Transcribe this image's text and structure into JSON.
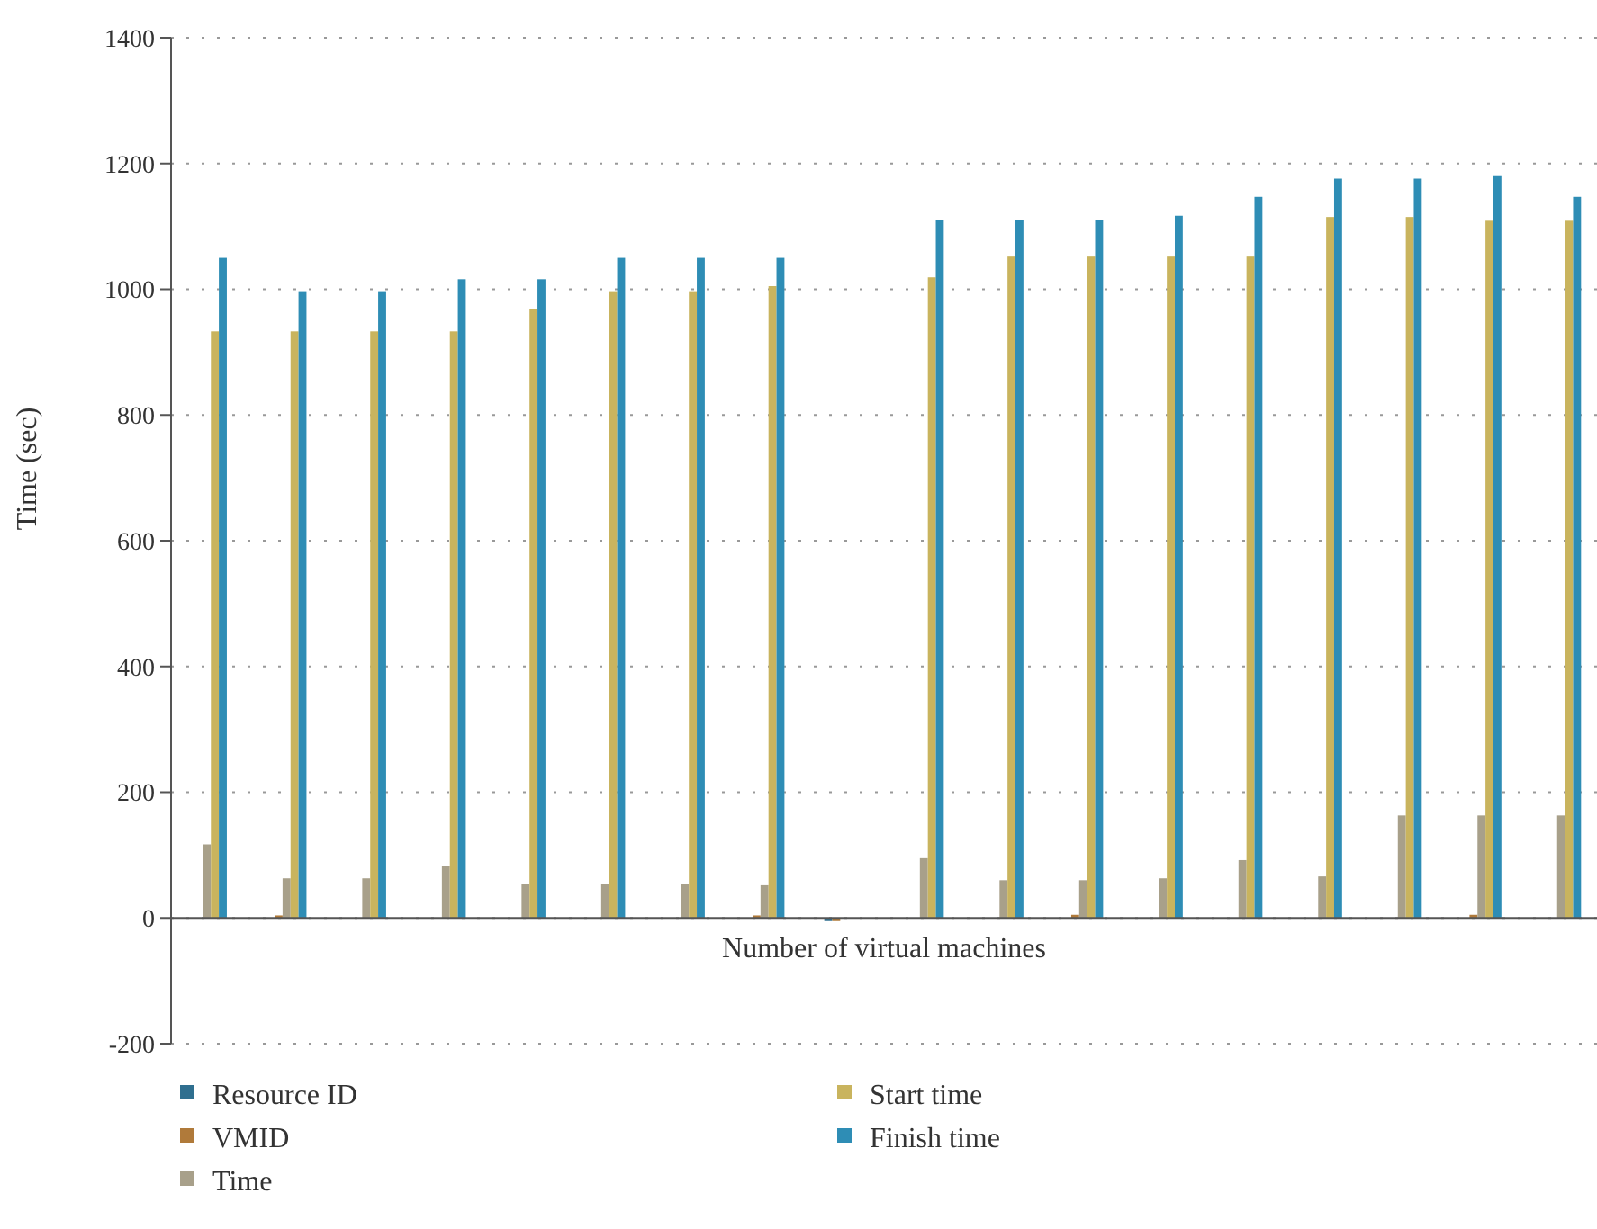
{
  "chart_data": {
    "type": "bar",
    "xlabel": "Number of virtual machines",
    "ylabel": "Time (sec)",
    "categories": [
      null,
      null,
      null,
      null,
      null,
      null,
      null,
      null,
      null,
      null,
      null,
      null,
      null,
      null,
      null,
      null,
      null,
      null
    ],
    "series": [
      {
        "name": "Resource ID",
        "color": "#2f6f8f",
        "values": [
          0,
          0,
          0,
          0,
          0,
          0,
          0,
          0,
          -5,
          0,
          0,
          0,
          0,
          0,
          0,
          0,
          0,
          0
        ]
      },
      {
        "name": "VMID",
        "color": "#b07a3a",
        "values": [
          0,
          4,
          0,
          0,
          0,
          0,
          0,
          4,
          -5,
          0,
          0,
          5,
          0,
          0,
          0,
          0,
          5,
          0
        ]
      },
      {
        "name": "Time",
        "color": "#a8a08a",
        "values": [
          117,
          63,
          63,
          83,
          54,
          54,
          54,
          52,
          0,
          95,
          60,
          60,
          63,
          92,
          66,
          163,
          163,
          163
        ]
      },
      {
        "name": "Start time",
        "color": "#c9b45e",
        "values": [
          933,
          933,
          933,
          933,
          969,
          997,
          997,
          1005,
          0,
          1019,
          1052,
          1052,
          1052,
          1052,
          1115,
          1115,
          1109,
          1109
        ]
      },
      {
        "name": "Finish time",
        "color": "#2e8db5",
        "values": [
          1050,
          997,
          997,
          1016,
          1016,
          1050,
          1050,
          1050,
          0,
          1110,
          1110,
          1110,
          1117,
          1147,
          1176,
          1176,
          1180,
          1147
        ]
      }
    ],
    "ylim": [
      -200,
      1400
    ],
    "yticks": [
      -200,
      0,
      200,
      400,
      600,
      800,
      1000,
      1200,
      1400
    ],
    "grid": "y",
    "legend": "bottom"
  }
}
